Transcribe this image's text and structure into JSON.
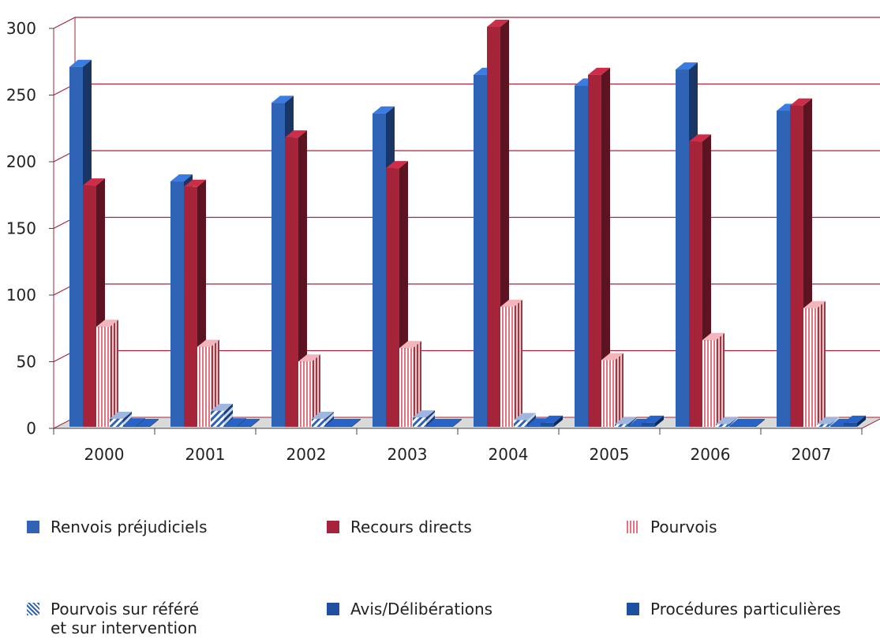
{
  "chart_data": {
    "type": "bar",
    "categories": [
      "2000",
      "2001",
      "2002",
      "2003",
      "2004",
      "2005",
      "2006",
      "2007"
    ],
    "series": [
      {
        "name": "Renvois préjudiciels",
        "values": [
          270,
          184,
          243,
          235,
          264,
          256,
          268,
          237
        ],
        "pattern": "solid",
        "color": "#2e63b5"
      },
      {
        "name": "Recours directs",
        "values": [
          181,
          180,
          217,
          194,
          300,
          264,
          214,
          241
        ],
        "pattern": "solid",
        "color": "#a5243a"
      },
      {
        "name": "Pourvois",
        "values": [
          75,
          60,
          49,
          59,
          90,
          50,
          65,
          89
        ],
        "pattern": "vertical-stripes",
        "color": "#e8717f"
      },
      {
        "name": "Pourvois sur référé\net sur intervention",
        "values": [
          6,
          12,
          6,
          7,
          5,
          2,
          2,
          2
        ],
        "pattern": "diagonal-stripes",
        "color": "#2e63b5"
      },
      {
        "name": "Avis/Délibérations",
        "values": [
          1,
          1,
          0,
          0,
          1,
          0,
          0,
          0
        ],
        "pattern": "solid",
        "color": "#1f4fa0"
      },
      {
        "name": "Procédures particulières",
        "values": [
          0,
          0,
          0,
          0,
          3,
          3,
          0,
          3
        ],
        "pattern": "solid",
        "color": "#1f4fa0"
      }
    ],
    "y_ticks": [
      "0",
      "50",
      "100",
      "150",
      "200",
      "250",
      "300"
    ],
    "ylim": [
      0,
      300
    ],
    "grid": true,
    "legend_position": "bottom",
    "colors": {
      "grid": "#a5243a",
      "floor": "#d9d9d9"
    }
  }
}
